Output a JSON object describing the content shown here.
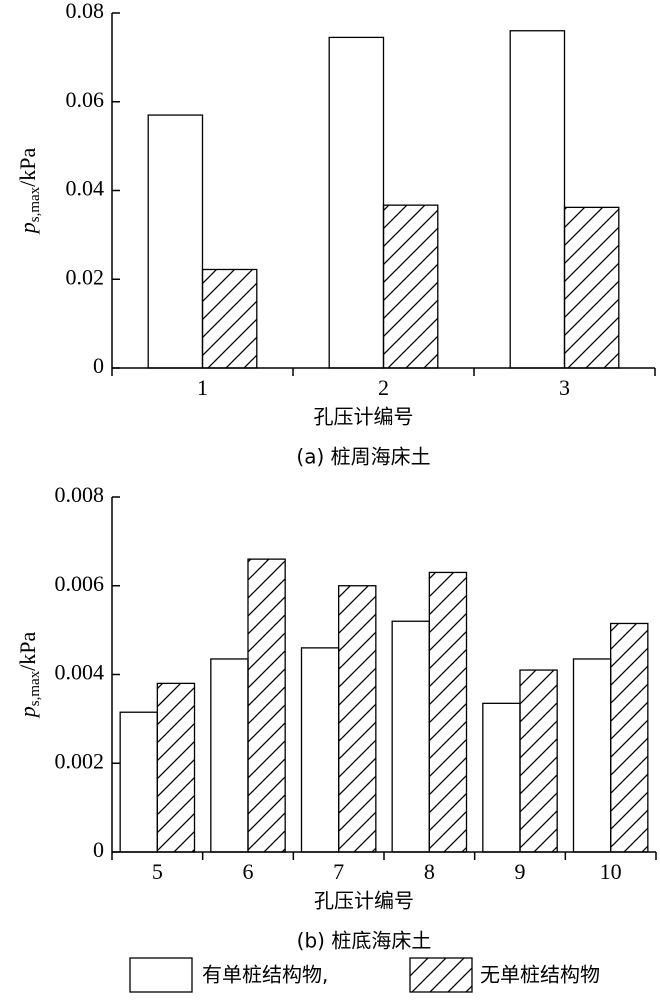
{
  "chart_data": [
    {
      "type": "bar",
      "ylabel": {
        "symbol": "p",
        "subscript": "s,max",
        "unit": "/kPa"
      },
      "xlabel": "孔压计编号",
      "caption": "(a) 桩周海床土",
      "categories": [
        "1",
        "2",
        "3"
      ],
      "series": [
        {
          "name": "有单桩结构物,",
          "color": "#ffffff",
          "pattern": "none",
          "values": [
            0.057,
            0.0745,
            0.076
          ]
        },
        {
          "name": "无单桩结构物",
          "color": "#ffffff",
          "pattern": "hatch",
          "values": [
            0.0222,
            0.0367,
            0.0362
          ]
        }
      ],
      "ylim": [
        0,
        0.08
      ],
      "yticks": [
        0,
        0.02,
        0.04,
        0.06,
        0.08
      ]
    },
    {
      "type": "bar",
      "ylabel": {
        "symbol": "p",
        "subscript": "s,max",
        "unit": "/kPa"
      },
      "xlabel": "孔压计编号",
      "caption": "(b) 桩底海床土",
      "categories": [
        "5",
        "6",
        "7",
        "8",
        "9",
        "10"
      ],
      "series": [
        {
          "name": "有单桩结构物,",
          "color": "#ffffff",
          "pattern": "none",
          "values": [
            0.00315,
            0.00435,
            0.0046,
            0.0052,
            0.00335,
            0.00435
          ]
        },
        {
          "name": "无单桩结构物",
          "color": "#ffffff",
          "pattern": "hatch",
          "values": [
            0.0038,
            0.0066,
            0.006,
            0.0063,
            0.0041,
            0.00515
          ]
        }
      ],
      "ylim": [
        0,
        0.008
      ],
      "yticks": [
        0,
        0.002,
        0.004,
        0.006,
        0.008
      ]
    }
  ]
}
